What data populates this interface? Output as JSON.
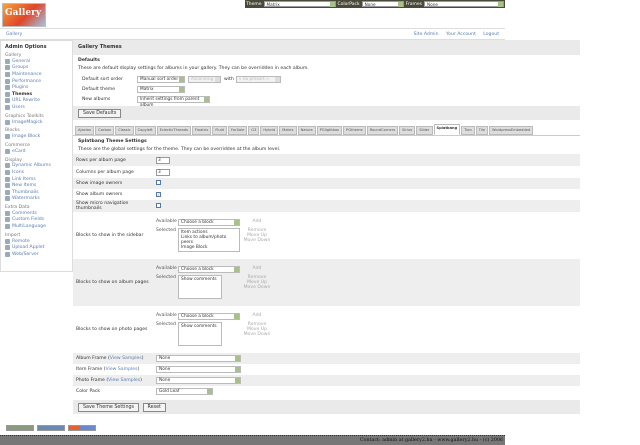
{
  "logo": "Gallery",
  "topbar": {
    "theme_label": "Theme",
    "theme_value": "Matrix",
    "colorpack_label": "ColorPack",
    "colorpack_value": "None",
    "frames_label": "Frames",
    "frames_value": "None"
  },
  "breadcrumb": {
    "root": "Gallery",
    "links": [
      "Site Admin",
      "Your Account",
      "Logout"
    ]
  },
  "sidebar": {
    "title": "Admin Options",
    "groups": [
      {
        "name": "Gallery",
        "items": [
          "General",
          "Groups",
          "Maintenance",
          "Performance",
          "Plugins",
          "Themes",
          "URL Rewrite",
          "Users"
        ]
      },
      {
        "name": "Graphics Toolkits",
        "items": [
          "ImageMagick"
        ]
      },
      {
        "name": "Blocks",
        "items": [
          "Image Block"
        ]
      },
      {
        "name": "Commerce",
        "items": [
          "eCard"
        ]
      },
      {
        "name": "Display",
        "items": [
          "Dynamic Albums",
          "Icons",
          "Link Items",
          "New Items",
          "Thumbnails",
          "Watermarks"
        ]
      },
      {
        "name": "Extra Data",
        "items": [
          "Comments",
          "Custom Fields",
          "MultiLanguage"
        ]
      },
      {
        "name": "Import",
        "items": [
          "Remote",
          "Upload Applet",
          "Web/Server"
        ]
      }
    ],
    "current": "Themes"
  },
  "main": {
    "title": "Gallery Themes",
    "defaults": {
      "heading": "Defaults",
      "desc": "These are default display settings for albums in your gallery. They can be overridden in each album.",
      "sort_label": "Default sort order",
      "sort_value": "Manual sort order",
      "sort_dir": "Ascending",
      "with_label": "with",
      "presort": "« no presort »",
      "theme_label": "Default theme",
      "theme_value": "Matrix",
      "new_label": "New albums",
      "new_value": "Inherit settings from parent album",
      "save": "Save Defaults"
    },
    "tabs": [
      "Ajaxian",
      "Carbon",
      "Classic",
      "Copyleft",
      "EclecticThreads",
      "Floatrix",
      "Fluid",
      "ForSale",
      "G3",
      "Hybrid",
      "Matrix",
      "Nature",
      "PGlightbox",
      "PGtheme",
      "RoundCorners",
      "Siriux",
      "Slider",
      "Splatbang",
      "Tion",
      "Tile",
      "WordpressEmbedded"
    ],
    "active_tab": "Splatbang",
    "settings": {
      "heading": "Splatbang Theme Settings",
      "desc": "These are the global settings for the theme. They can be overridden at the album level.",
      "rows_label": "Rows per album page",
      "rows_value": "3",
      "cols_label": "Columns per album page",
      "cols_value": "3",
      "img_owners_label": "Show image owners",
      "img_owners": false,
      "album_owners_label": "Show album owners",
      "album_owners": true,
      "micro_label": "Show micro navigation thumbnails",
      "micro": false,
      "available": "Available",
      "selected": "Selected",
      "choose": "Choose a block",
      "add": "Add",
      "remove": "Remove",
      "up": "Move Up",
      "down": "Move Down",
      "sidebar_label": "Blocks to show in the sidebar",
      "sidebar_blocks": "Item actions\nLinks to album/photo peers\nImage Block",
      "album_label": "Blocks to show on album pages",
      "album_blocks": "Show comments",
      "photo_label": "Blocks to show on photo pages",
      "photo_blocks": "Show comments",
      "view_samples": "View Samples",
      "album_frame_label": "Album Frame",
      "album_frame": "None",
      "item_frame_label": "Item Frame",
      "item_frame": "None",
      "photo_frame_label": "Photo Frame",
      "photo_frame": "None",
      "colorpack_label": "Color Pack",
      "colorpack": "Gold Leaf",
      "save": "Save Theme Settings",
      "reset": "Reset"
    }
  },
  "footer": "Contact: admin at gallery2.hu - www.gallery2.hu - (c) 2006"
}
